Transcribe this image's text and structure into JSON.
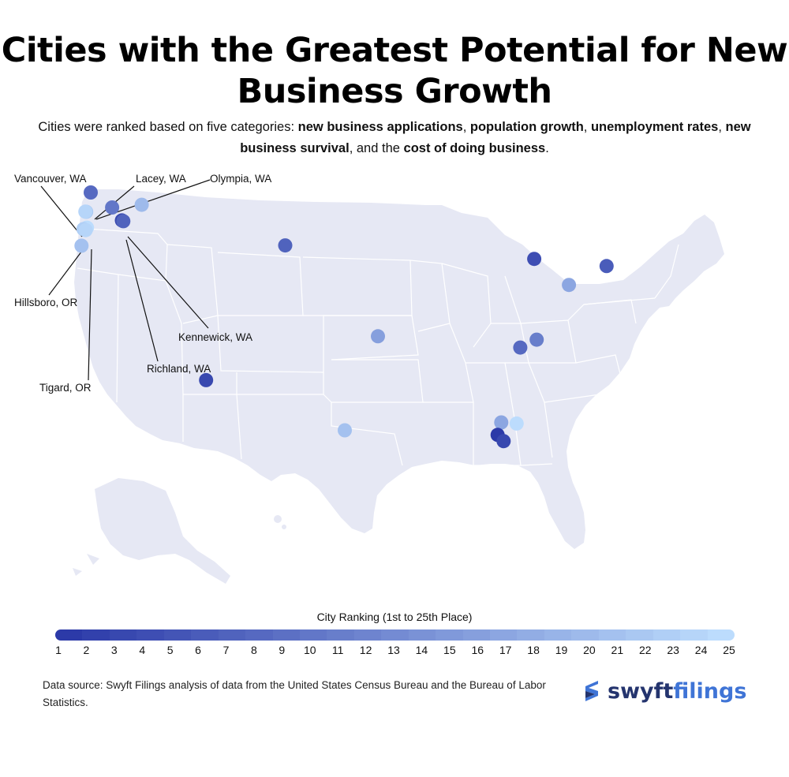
{
  "title_line1": "Cities with the Greatest Potential for New",
  "title_line2": "Business Growth",
  "subtitle": {
    "p1": "Cities were ranked based on five categories: ",
    "b1": "new business applications",
    "p2": ", ",
    "b2": "population growth",
    "p3": ", ",
    "b3": "unemployment rates",
    "p4": ", ",
    "b4": "new business survival",
    "p5": ", and the ",
    "b5": "cost of doing business",
    "p6": "."
  },
  "map": {
    "land_color": "#e6e8f4",
    "border_color": "#ffffff",
    "callouts": [
      {
        "label": "Vancouver, WA",
        "rank": 25
      },
      {
        "label": "Lacey, WA",
        "rank": 22
      },
      {
        "label": "Olympia, WA",
        "rank": 24
      },
      {
        "label": "Hillsboro, OR",
        "rank": 23
      },
      {
        "label": "Tigard, OR",
        "rank": 24
      },
      {
        "label": "Kennewick, WA",
        "rank": 7
      },
      {
        "label": "Richland, WA",
        "rank": 3
      }
    ],
    "cities": [
      {
        "rank": 8,
        "lon": -122.48,
        "lat": 48.74
      },
      {
        "rank": 20,
        "lon": -117.43,
        "lat": 47.66
      },
      {
        "rank": 10,
        "lon": -120.31,
        "lat": 47.42
      },
      {
        "rank": 3,
        "lon": -119.28,
        "lat": 46.28
      },
      {
        "rank": 7,
        "lon": -119.14,
        "lat": 46.21
      },
      {
        "rank": 22,
        "lon": -122.82,
        "lat": 47.04
      },
      {
        "rank": 24,
        "lon": -122.9,
        "lat": 47.05
      },
      {
        "rank": 25,
        "lon": -122.66,
        "lat": 45.64
      },
      {
        "rank": 23,
        "lon": -122.99,
        "lat": 45.52
      },
      {
        "rank": 24,
        "lon": -122.77,
        "lat": 45.43
      },
      {
        "rank": 21,
        "lon": -123.09,
        "lat": 44.05
      },
      {
        "rank": 7,
        "lon": -103.23,
        "lat": 44.08
      },
      {
        "rank": 3,
        "lon": -110.97,
        "lat": 32.22
      },
      {
        "rank": 16,
        "lon": -94.16,
        "lat": 36.08
      },
      {
        "rank": 21,
        "lon": -97.4,
        "lat": 27.8
      },
      {
        "rank": 4,
        "lon": -78.88,
        "lat": 42.89
      },
      {
        "rank": 6,
        "lon": -71.8,
        "lat": 42.26
      },
      {
        "rank": 17,
        "lon": -75.48,
        "lat": 40.6
      },
      {
        "rank": 11,
        "lon": -78.64,
        "lat": 35.78
      },
      {
        "rank": 8,
        "lon": -80.24,
        "lat": 35.09
      },
      {
        "rank": 17,
        "lon": -82.1,
        "lat": 28.5
      },
      {
        "rank": 25,
        "lon": -80.6,
        "lat": 28.4
      },
      {
        "rank": 1,
        "lon": -82.46,
        "lat": 27.4
      },
      {
        "rank": 3,
        "lon": -81.87,
        "lat": 26.85
      }
    ]
  },
  "legend": {
    "title": "City Ranking (1st to 25th Place)",
    "color_first": "#2c3aa8",
    "color_last": "#bcdcfd",
    "ticks": [
      "1",
      "2",
      "3",
      "4",
      "5",
      "6",
      "7",
      "8",
      "9",
      "10",
      "11",
      "12",
      "13",
      "14",
      "15",
      "16",
      "17",
      "18",
      "19",
      "20",
      "21",
      "22",
      "23",
      "24",
      "25"
    ]
  },
  "source": "Data source: Swyft Filings analysis of data from the United States Census Bureau and the Bureau of Labor Statistics.",
  "logo": {
    "part1": "swyft",
    "part2": "filings",
    "color1": "#24346e",
    "color2": "#3f74d6"
  }
}
